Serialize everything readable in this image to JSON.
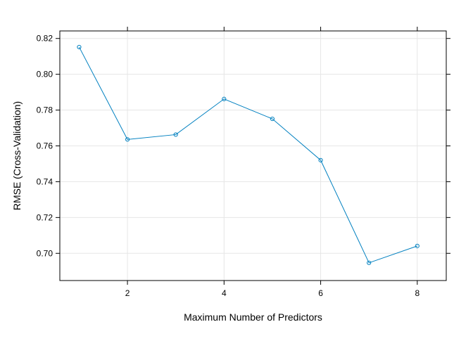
{
  "chart_data": {
    "type": "line",
    "xlabel": "Maximum Number of Predictors",
    "ylabel": "RMSE (Cross-Validation)",
    "x": [
      1,
      2,
      3,
      4,
      5,
      6,
      7,
      8
    ],
    "series": [
      {
        "values": [
          0.8152,
          0.7636,
          0.7663,
          0.7862,
          0.7751,
          0.752,
          0.6947,
          0.7041
        ]
      }
    ],
    "xlim": [
      0.6,
      8.6
    ],
    "ylim": [
      0.6848,
      0.8242
    ],
    "x_ticks": [
      2,
      4,
      6,
      8
    ],
    "x_tick_labels": [
      "2",
      "4",
      "6",
      "8"
    ],
    "y_ticks": [
      0.7,
      0.72,
      0.74,
      0.76,
      0.78,
      0.8,
      0.82
    ],
    "y_tick_labels": [
      "0.70",
      "0.72",
      "0.74",
      "0.76",
      "0.78",
      "0.80",
      "0.82"
    ],
    "grid": true,
    "marker": "open-circle",
    "colors": {
      "line": "#0080C0",
      "grid": "#E6E6E6",
      "axis": "#000000"
    }
  }
}
